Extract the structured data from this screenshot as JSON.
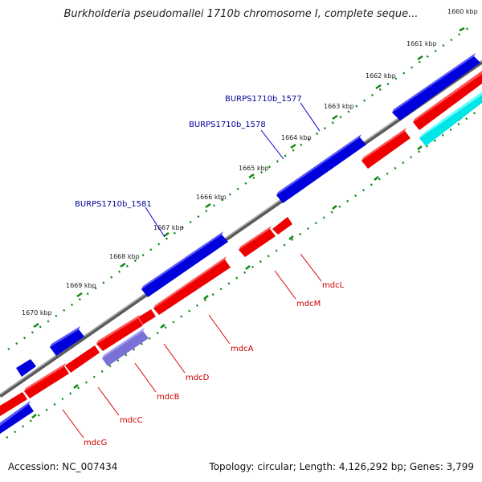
{
  "title": "Burkholderia pseudomallei 1710b chromosome I, complete seque...",
  "footer": {
    "accession": "Accession: NC_007434",
    "summary": "Topology: circular; Length: 4,126,292 bp; Genes: 3,799"
  },
  "ruler_labels": [
    "1660 kbp",
    "1661 kbp",
    "1662 kbp",
    "1663 kbp",
    "1664 kbp",
    "1665 kbp",
    "1666 kbp",
    "1667 kbp",
    "1668 kbp",
    "1669 kbp",
    "1670 kbp"
  ],
  "top_labels": [
    "BURPS1710b_1577",
    "BURPS1710b_1578",
    "BURPS1710b_1581"
  ],
  "bottom_labels": [
    "mdcL",
    "mdcM",
    "mdcA",
    "mdcD",
    "mdcB",
    "mdcC",
    "mdcG"
  ],
  "colors": {
    "forward_gene": "#0000dd",
    "reverse_gene": "#ee0000",
    "cyan_gene": "#00e5e5",
    "purple_gene": "#7a70d8",
    "backbone": "#808080",
    "tick": "#118811",
    "top_label": "#000099",
    "bottom_label": "#cc0000",
    "leader_line": "#0000cc",
    "leader_line_bottom": "#dd0000"
  }
}
